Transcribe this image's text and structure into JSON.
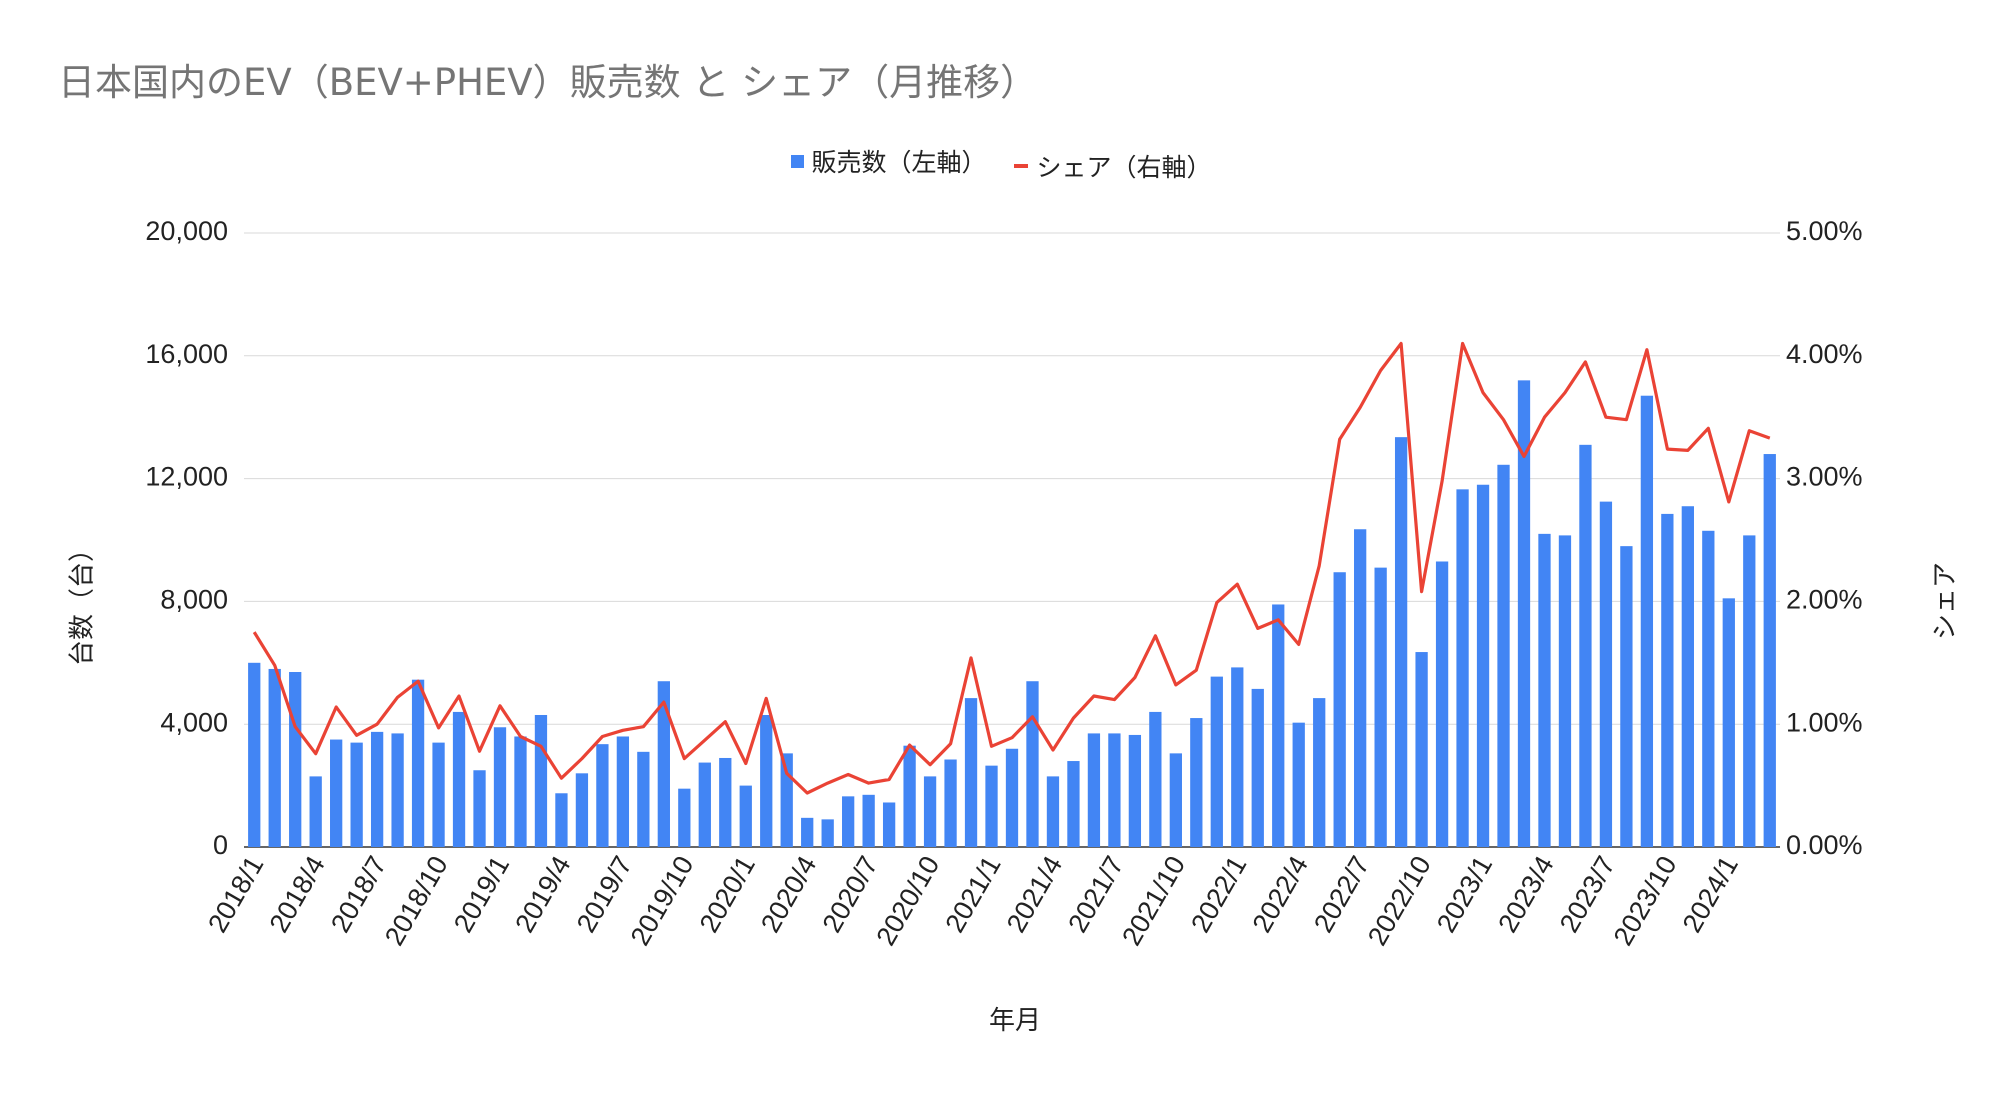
{
  "chart_data": {
    "type": "bar+line",
    "title": "日本国内のEV（BEV+PHEV）販売数 と シェア（月推移）",
    "xlabel": "年月",
    "ylabel_left": "台数（台）",
    "ylabel_right": "シェア",
    "ylim_left": [
      0,
      20000
    ],
    "ylim_right": [
      0,
      5
    ],
    "y_ticks_left": [
      "0",
      "4,000",
      "8,000",
      "12,000",
      "16,000",
      "20,000"
    ],
    "y_ticks_right": [
      "0.00%",
      "1.00%",
      "2.00%",
      "3.00%",
      "4.00%",
      "5.00%"
    ],
    "legend_position": "top-center",
    "grid": true,
    "categories": [
      "2018/1",
      "2018/2",
      "2018/3",
      "2018/4",
      "2018/5",
      "2018/6",
      "2018/7",
      "2018/8",
      "2018/9",
      "2018/10",
      "2018/11",
      "2018/12",
      "2019/1",
      "2019/2",
      "2019/3",
      "2019/4",
      "2019/5",
      "2019/6",
      "2019/7",
      "2019/8",
      "2019/9",
      "2019/10",
      "2019/11",
      "2019/12",
      "2020/1",
      "2020/2",
      "2020/3",
      "2020/4",
      "2020/5",
      "2020/6",
      "2020/7",
      "2020/8",
      "2020/9",
      "2020/10",
      "2020/11",
      "2020/12",
      "2021/1",
      "2021/2",
      "2021/3",
      "2021/4",
      "2021/5",
      "2021/6",
      "2021/7",
      "2021/8",
      "2021/9",
      "2021/10",
      "2021/11",
      "2021/12",
      "2022/1",
      "2022/2",
      "2022/3",
      "2022/4",
      "2022/5",
      "2022/6",
      "2022/7",
      "2022/8",
      "2022/9",
      "2022/10",
      "2022/11",
      "2022/12",
      "2023/1",
      "2023/2",
      "2023/3",
      "2023/4",
      "2023/5",
      "2023/6",
      "2023/7",
      "2023/8",
      "2023/9",
      "2023/10",
      "2023/11",
      "2023/12",
      "2024/1",
      "2024/2",
      "2024/3"
    ],
    "x_tick_labels": [
      "2018/1",
      "2018/4",
      "2018/7",
      "2018/10",
      "2019/1",
      "2019/4",
      "2019/7",
      "2019/10",
      "2020/1",
      "2020/4",
      "2020/7",
      "2020/10",
      "2021/1",
      "2021/4",
      "2021/7",
      "2021/10",
      "2022/1",
      "2022/4",
      "2022/7",
      "2022/10",
      "2023/1",
      "2023/4",
      "2023/7",
      "2023/10",
      "2024/1"
    ],
    "series": [
      {
        "name": "販売数（左軸）",
        "type": "bar",
        "axis": "left",
        "color": "#4285f4",
        "values": [
          6000,
          5800,
          5700,
          2300,
          3500,
          3400,
          3750,
          3700,
          5450,
          3400,
          4400,
          2500,
          3900,
          3600,
          4300,
          1750,
          2400,
          3350,
          3600,
          3100,
          5400,
          1900,
          2750,
          2900,
          2000,
          4300,
          3050,
          950,
          900,
          1650,
          1700,
          1450,
          3300,
          2300,
          2850,
          4850,
          2650,
          3200,
          5400,
          2300,
          2800,
          3700,
          3700,
          3650,
          4400,
          3050,
          4200,
          5550,
          5850,
          5150,
          7900,
          4050,
          4850,
          8950,
          10350,
          9100,
          13350,
          6350,
          9300,
          11650,
          11800,
          12450,
          15200,
          10200,
          10150,
          13100,
          11250,
          9800,
          14700,
          10850,
          11100,
          10300,
          8100,
          10150,
          12800
        ]
      },
      {
        "name": "シェア（右軸）",
        "type": "line",
        "axis": "right",
        "unit": "%",
        "color": "#ea4335",
        "values": [
          1.75,
          1.48,
          0.98,
          0.76,
          1.14,
          0.91,
          1.0,
          1.22,
          1.35,
          0.97,
          1.23,
          0.78,
          1.15,
          0.9,
          0.82,
          0.56,
          0.72,
          0.9,
          0.95,
          0.98,
          1.18,
          0.72,
          0.87,
          1.02,
          0.68,
          1.21,
          0.6,
          0.44,
          0.52,
          0.59,
          0.52,
          0.55,
          0.83,
          0.67,
          0.84,
          1.54,
          0.82,
          0.89,
          1.06,
          0.79,
          1.05,
          1.23,
          1.2,
          1.38,
          1.72,
          1.32,
          1.44,
          1.99,
          2.14,
          1.78,
          1.85,
          1.65,
          2.29,
          3.32,
          3.58,
          3.88,
          4.1,
          2.08,
          2.98,
          4.1,
          3.7,
          3.48,
          3.18,
          3.5,
          3.7,
          3.95,
          3.5,
          3.48,
          4.05,
          3.24,
          3.23,
          3.41,
          2.81,
          3.39,
          3.33
        ]
      }
    ]
  }
}
